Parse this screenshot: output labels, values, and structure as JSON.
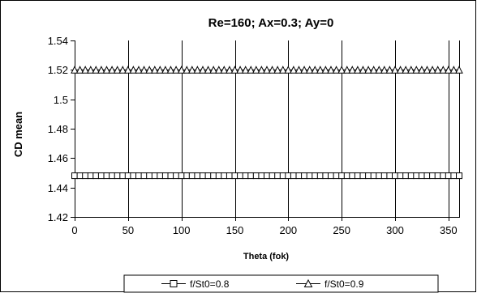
{
  "chart_data": {
    "type": "line",
    "title": "Re=160; Ax=0.3; Ay=0",
    "xlabel": "Theta (fok)",
    "ylabel": "CD mean",
    "xlim": [
      0,
      360
    ],
    "ylim": [
      1.42,
      1.54
    ],
    "x_ticks": [
      0,
      50,
      100,
      150,
      200,
      250,
      300,
      350
    ],
    "y_ticks": [
      1.42,
      1.44,
      1.46,
      1.48,
      1.5,
      1.52,
      1.54
    ],
    "y_tick_labels": [
      "1.42",
      "1.44",
      "1.46",
      "1.48",
      "1.5",
      "1.52",
      "1.54"
    ],
    "grid": "vertical",
    "legend": "bottom",
    "series": [
      {
        "name": "f/St0=0.8",
        "marker": "square",
        "x": [
          0,
          5,
          10,
          15,
          20,
          25,
          30,
          35,
          40,
          45,
          50,
          55,
          60,
          65,
          70,
          75,
          80,
          85,
          90,
          95,
          100,
          105,
          110,
          115,
          120,
          125,
          130,
          135,
          140,
          145,
          150,
          155,
          160,
          165,
          170,
          175,
          180,
          185,
          190,
          195,
          200,
          205,
          210,
          215,
          220,
          225,
          230,
          235,
          240,
          245,
          250,
          255,
          260,
          265,
          270,
          275,
          280,
          285,
          290,
          295,
          300,
          305,
          310,
          315,
          320,
          325,
          330,
          335,
          340,
          345,
          350,
          355,
          360
        ],
        "y": [
          1.448,
          1.448,
          1.448,
          1.448,
          1.448,
          1.448,
          1.448,
          1.448,
          1.448,
          1.448,
          1.448,
          1.448,
          1.448,
          1.448,
          1.448,
          1.448,
          1.448,
          1.448,
          1.448,
          1.448,
          1.448,
          1.448,
          1.448,
          1.448,
          1.448,
          1.448,
          1.448,
          1.448,
          1.448,
          1.448,
          1.448,
          1.448,
          1.448,
          1.448,
          1.448,
          1.448,
          1.448,
          1.448,
          1.448,
          1.448,
          1.448,
          1.448,
          1.448,
          1.448,
          1.448,
          1.448,
          1.448,
          1.448,
          1.448,
          1.448,
          1.448,
          1.448,
          1.448,
          1.448,
          1.448,
          1.448,
          1.448,
          1.448,
          1.448,
          1.448,
          1.448,
          1.448,
          1.448,
          1.448,
          1.448,
          1.448,
          1.448,
          1.448,
          1.448,
          1.448,
          1.448,
          1.448,
          1.448
        ]
      },
      {
        "name": "f/St0=0.9",
        "marker": "triangle",
        "x": [
          0,
          5,
          10,
          15,
          20,
          25,
          30,
          35,
          40,
          45,
          50,
          55,
          60,
          65,
          70,
          75,
          80,
          85,
          90,
          95,
          100,
          105,
          110,
          115,
          120,
          125,
          130,
          135,
          140,
          145,
          150,
          155,
          160,
          165,
          170,
          175,
          180,
          185,
          190,
          195,
          200,
          205,
          210,
          215,
          220,
          225,
          230,
          235,
          240,
          245,
          250,
          255,
          260,
          265,
          270,
          275,
          280,
          285,
          290,
          295,
          300,
          305,
          310,
          315,
          320,
          325,
          330,
          335,
          340,
          345,
          350,
          355,
          360
        ],
        "y": [
          1.52,
          1.52,
          1.52,
          1.52,
          1.52,
          1.52,
          1.52,
          1.52,
          1.52,
          1.52,
          1.52,
          1.52,
          1.52,
          1.52,
          1.52,
          1.52,
          1.52,
          1.52,
          1.52,
          1.52,
          1.52,
          1.52,
          1.52,
          1.52,
          1.52,
          1.52,
          1.52,
          1.52,
          1.52,
          1.52,
          1.52,
          1.52,
          1.52,
          1.52,
          1.52,
          1.52,
          1.52,
          1.52,
          1.52,
          1.52,
          1.52,
          1.52,
          1.52,
          1.52,
          1.52,
          1.52,
          1.52,
          1.52,
          1.52,
          1.52,
          1.52,
          1.52,
          1.52,
          1.52,
          1.52,
          1.52,
          1.52,
          1.52,
          1.52,
          1.52,
          1.52,
          1.52,
          1.52,
          1.52,
          1.52,
          1.52,
          1.52,
          1.52,
          1.52,
          1.52,
          1.52,
          1.52,
          1.52
        ]
      }
    ],
    "colors": {
      "background": "#ffffff",
      "axis": "#000000",
      "grid": "#000000",
      "marker_fill": "#ffffff"
    }
  }
}
